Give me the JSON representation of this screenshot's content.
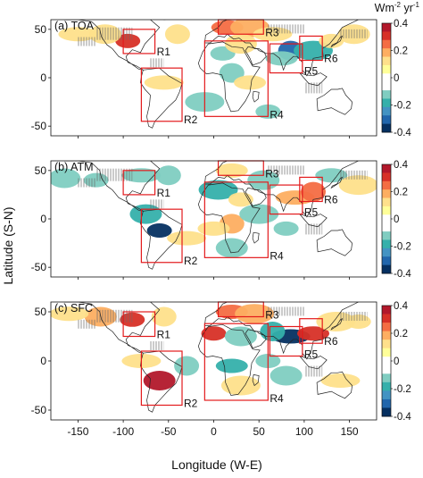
{
  "chart_data": {
    "type": "heatmap",
    "xlabel": "Longitude (W-E)",
    "ylabel": "Latitude (S-N)",
    "xlim": [
      -180,
      180
    ],
    "ylim": [
      -60,
      60
    ],
    "x_ticks": [
      -150,
      -100,
      -50,
      0,
      50,
      100,
      150
    ],
    "y_ticks": [
      50,
      0,
      -50
    ],
    "colorbar": {
      "unit_label": "Wm",
      "unit_sup1": "-2",
      "unit_mid": " yr",
      "unit_sup2": "-1",
      "ticks": [
        0.4,
        0.2,
        0,
        -0.2,
        -0.4
      ],
      "colors": [
        "#b2182b",
        "#d73027",
        "#f46d43",
        "#fdae61",
        "#fee08b",
        "#ffff99",
        "#ffffff",
        "#ffffff",
        "#80cdc1",
        "#35b0ab",
        "#4393c3",
        "#2166ac",
        "#053061"
      ]
    },
    "panels": [
      {
        "label": "(a) TOA",
        "regions": [
          {
            "name": "R1",
            "lon": [
              -100,
              -65
            ],
            "lat": [
              25,
              50
            ]
          },
          {
            "name": "R2",
            "lon": [
              -80,
              -35
            ],
            "lat": [
              -45,
              10
            ]
          },
          {
            "name": "R3",
            "lon": [
              5,
              55
            ],
            "lat": [
              45,
              60
            ]
          },
          {
            "name": "R4",
            "lon": [
              -10,
              60
            ],
            "lat": [
              -40,
              38
            ]
          },
          {
            "name": "R5",
            "lon": [
              62,
              98
            ],
            "lat": [
              5,
              35
            ]
          },
          {
            "name": "R6",
            "lon": [
              95,
              120
            ],
            "lat": [
              18,
              43
            ]
          }
        ],
        "patches": [
          {
            "lon": -95,
            "lat": 38,
            "v": 0.3
          },
          {
            "lon": -120,
            "lat": 45,
            "v": 0.15
          },
          {
            "lon": -150,
            "lat": 45,
            "v": 0.12
          },
          {
            "lon": -40,
            "lat": 45,
            "v": 0.12
          },
          {
            "lon": 15,
            "lat": 52,
            "v": 0.25
          },
          {
            "lon": 40,
            "lat": 52,
            "v": 0.2
          },
          {
            "lon": 10,
            "lat": 25,
            "v": -0.15
          },
          {
            "lon": 30,
            "lat": 35,
            "v": 0.15
          },
          {
            "lon": 65,
            "lat": 45,
            "v": 0.12
          },
          {
            "lon": 85,
            "lat": 28,
            "v": -0.3
          },
          {
            "lon": 75,
            "lat": 20,
            "v": -0.15
          },
          {
            "lon": 110,
            "lat": 28,
            "v": -0.2
          },
          {
            "lon": 130,
            "lat": 38,
            "v": 0.15
          },
          {
            "lon": 155,
            "lat": 45,
            "v": 0.15
          },
          {
            "lon": -55,
            "lat": -5,
            "v": 0.12
          },
          {
            "lon": 20,
            "lat": 5,
            "v": -0.12
          },
          {
            "lon": 40,
            "lat": -5,
            "v": 0.12
          },
          {
            "lon": -10,
            "lat": -25,
            "v": -0.1
          },
          {
            "lon": 60,
            "lat": -35,
            "v": -0.1
          }
        ]
      },
      {
        "label": "(b) ATM",
        "regions": [
          {
            "name": "R1",
            "lon": [
              -100,
              -65
            ],
            "lat": [
              25,
              50
            ]
          },
          {
            "name": "R2",
            "lon": [
              -80,
              -35
            ],
            "lat": [
              -45,
              10
            ]
          },
          {
            "name": "R3",
            "lon": [
              5,
              55
            ],
            "lat": [
              45,
              60
            ]
          },
          {
            "name": "R4",
            "lon": [
              -10,
              60
            ],
            "lat": [
              -40,
              38
            ]
          },
          {
            "name": "R5",
            "lon": [
              62,
              98
            ],
            "lat": [
              5,
              35
            ]
          },
          {
            "name": "R6",
            "lon": [
              95,
              120
            ],
            "lat": [
              18,
              43
            ]
          }
        ],
        "patches": [
          {
            "lon": -130,
            "lat": 40,
            "v": -0.15
          },
          {
            "lon": -165,
            "lat": 42,
            "v": -0.15
          },
          {
            "lon": -80,
            "lat": 45,
            "v": -0.15
          },
          {
            "lon": -50,
            "lat": 45,
            "v": -0.12
          },
          {
            "lon": 20,
            "lat": 50,
            "v": 0.15
          },
          {
            "lon": 5,
            "lat": 30,
            "v": -0.2
          },
          {
            "lon": 30,
            "lat": 20,
            "v": 0.15
          },
          {
            "lon": 55,
            "lat": 40,
            "v": -0.15
          },
          {
            "lon": 90,
            "lat": 22,
            "v": 0.2
          },
          {
            "lon": 110,
            "lat": 28,
            "v": 0.25
          },
          {
            "lon": 130,
            "lat": 45,
            "v": -0.15
          },
          {
            "lon": 160,
            "lat": 35,
            "v": 0.12
          },
          {
            "lon": -60,
            "lat": -12,
            "v": -0.35
          },
          {
            "lon": -75,
            "lat": 5,
            "v": -0.2
          },
          {
            "lon": -30,
            "lat": -20,
            "v": 0.12
          },
          {
            "lon": 20,
            "lat": -5,
            "v": 0.2
          },
          {
            "lon": 0,
            "lat": -10,
            "v": 0.12
          },
          {
            "lon": 50,
            "lat": 5,
            "v": -0.15
          },
          {
            "lon": 80,
            "lat": -10,
            "v": -0.12
          },
          {
            "lon": 20,
            "lat": -30,
            "v": -0.15
          }
        ]
      },
      {
        "label": "(c) SFC",
        "regions": [
          {
            "name": "R1",
            "lon": [
              -100,
              -65
            ],
            "lat": [
              25,
              50
            ]
          },
          {
            "name": "R2",
            "lon": [
              -80,
              -35
            ],
            "lat": [
              -45,
              10
            ]
          },
          {
            "name": "R3",
            "lon": [
              5,
              55
            ],
            "lat": [
              45,
              60
            ]
          },
          {
            "name": "R4",
            "lon": [
              -10,
              60
            ],
            "lat": [
              -40,
              38
            ]
          },
          {
            "name": "R5",
            "lon": [
              62,
              98
            ],
            "lat": [
              5,
              35
            ]
          },
          {
            "name": "R6",
            "lon": [
              95,
              120
            ],
            "lat": [
              18,
              43
            ]
          }
        ],
        "patches": [
          {
            "lon": -90,
            "lat": 42,
            "v": 0.3
          },
          {
            "lon": -125,
            "lat": 45,
            "v": 0.2
          },
          {
            "lon": -160,
            "lat": 48,
            "v": 0.15
          },
          {
            "lon": -55,
            "lat": 45,
            "v": 0.15
          },
          {
            "lon": 20,
            "lat": 50,
            "v": 0.25
          },
          {
            "lon": 45,
            "lat": 48,
            "v": 0.2
          },
          {
            "lon": 0,
            "lat": 28,
            "v": 0.3
          },
          {
            "lon": 30,
            "lat": 25,
            "v": -0.15
          },
          {
            "lon": 85,
            "lat": 25,
            "v": -0.35
          },
          {
            "lon": 65,
            "lat": 30,
            "v": -0.2
          },
          {
            "lon": 110,
            "lat": 28,
            "v": 0.3
          },
          {
            "lon": 135,
            "lat": 40,
            "v": 0.15
          },
          {
            "lon": 160,
            "lat": 40,
            "v": 0.15
          },
          {
            "lon": -60,
            "lat": -20,
            "v": 0.35
          },
          {
            "lon": -80,
            "lat": 0,
            "v": 0.15
          },
          {
            "lon": -30,
            "lat": -5,
            "v": -0.15
          },
          {
            "lon": 20,
            "lat": -5,
            "v": -0.2
          },
          {
            "lon": 30,
            "lat": -25,
            "v": 0.15
          },
          {
            "lon": 60,
            "lat": 0,
            "v": -0.15
          },
          {
            "lon": 80,
            "lat": -15,
            "v": -0.12
          },
          {
            "lon": 140,
            "lat": -20,
            "v": 0.12
          }
        ]
      }
    ]
  }
}
